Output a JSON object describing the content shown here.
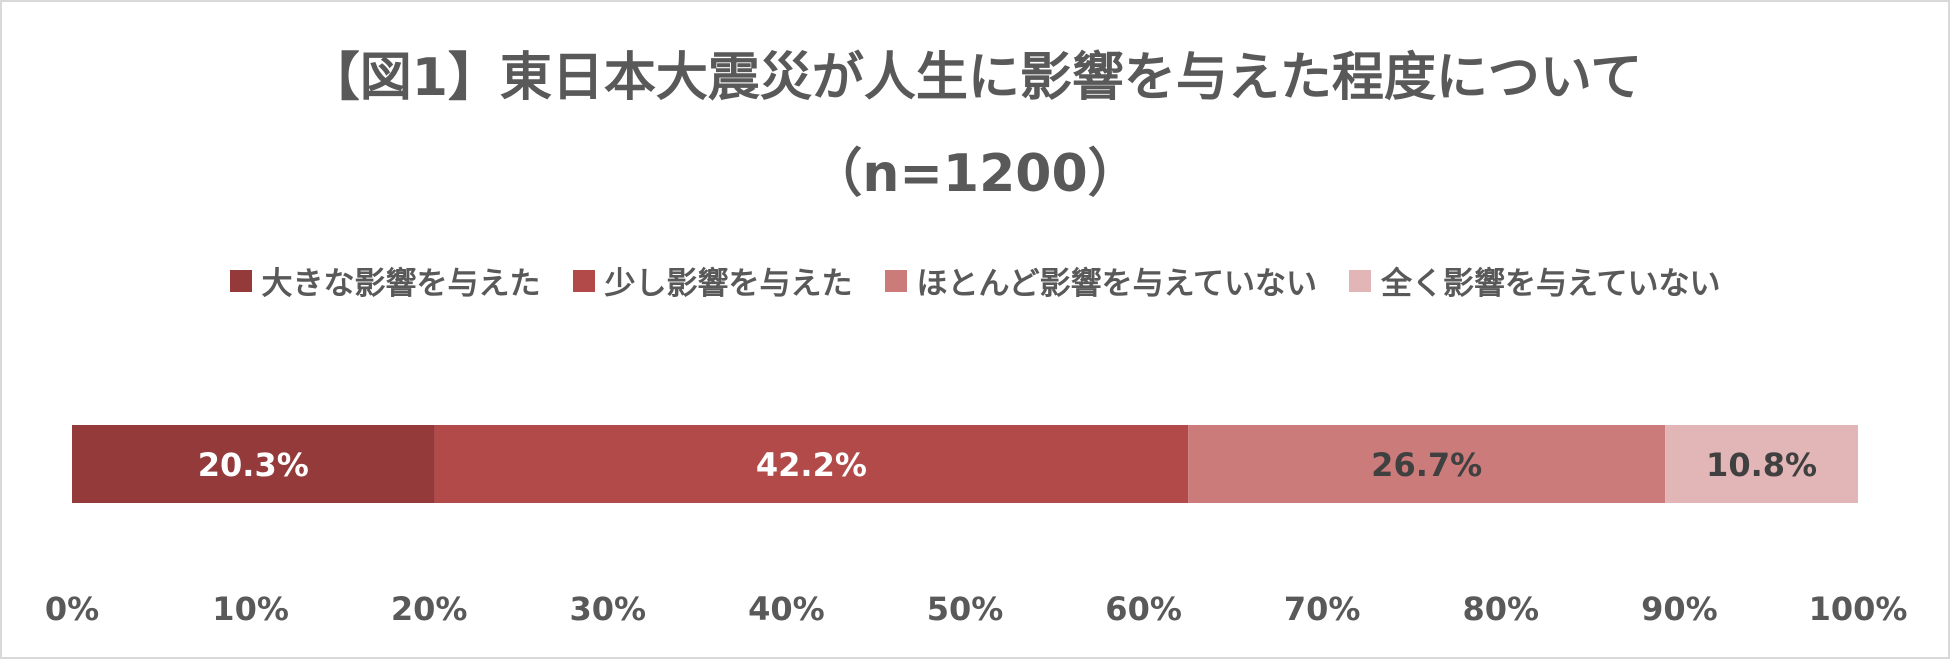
{
  "chart_data": {
    "type": "bar",
    "orientation": "horizontal-stacked-100",
    "title_line1": "【図1】東日本大震災が人生に影響を与えた程度について",
    "title_line2": "（n=1200）",
    "legend_position": "top",
    "series": [
      {
        "name": "大きな影響を与えた",
        "value": 20.3,
        "label": "20.3%",
        "color": "#943a3a",
        "label_color": "#ffffff"
      },
      {
        "name": "少し影響を与えた",
        "value": 42.2,
        "label": "42.2%",
        "color": "#b24a4a",
        "label_color": "#ffffff"
      },
      {
        "name": "ほとんど影響を与えていない",
        "value": 26.7,
        "label": "26.7%",
        "color": "#cc7b7b",
        "label_color": "#404040"
      },
      {
        "name": "全く影響を与えていない",
        "value": 10.8,
        "label": "10.8%",
        "color": "#e2b6b6",
        "label_color": "#404040"
      }
    ],
    "xlim": [
      0,
      100
    ],
    "x_ticks": [
      "0%",
      "10%",
      "20%",
      "30%",
      "40%",
      "50%",
      "60%",
      "70%",
      "80%",
      "90%",
      "100%"
    ],
    "grid": false
  }
}
